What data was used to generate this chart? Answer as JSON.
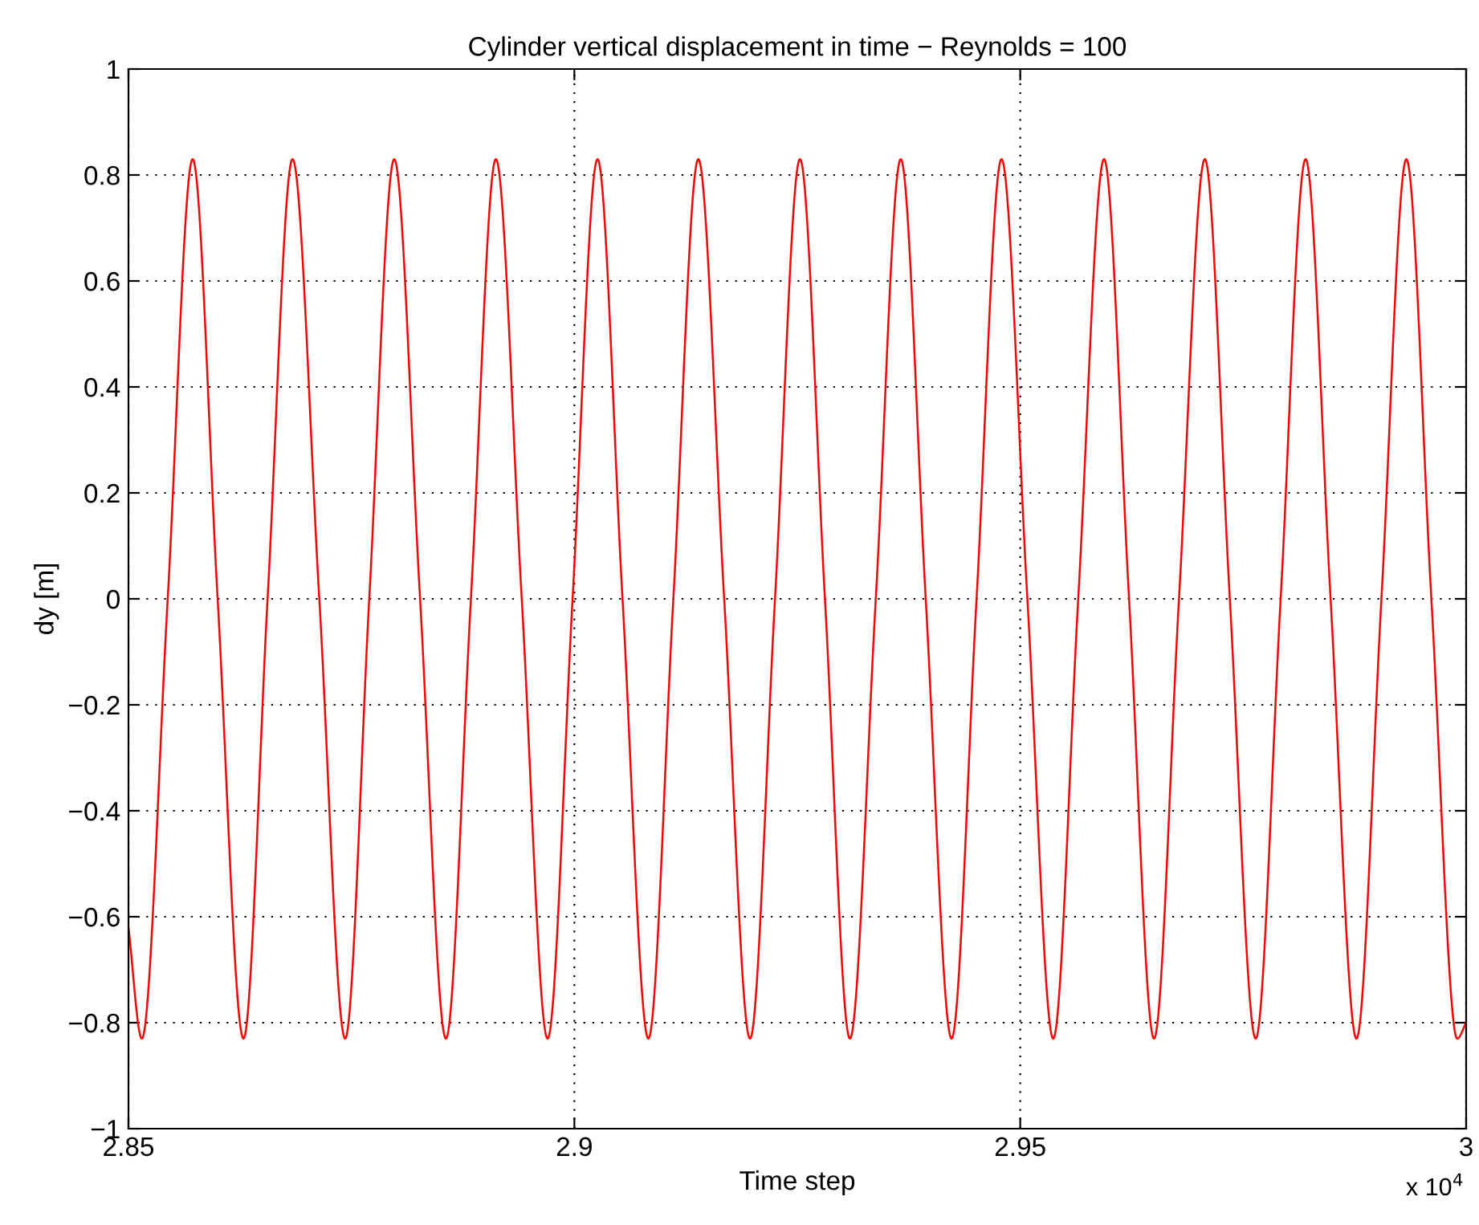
{
  "chart_data": {
    "type": "line",
    "title": "Cylinder vertical displacement in time − Reynolds = 100",
    "xlabel": "Time step",
    "ylabel": "dy [m]",
    "annotations": [
      "x 10$^{4}$"
    ],
    "xlim": [
      2.85,
      3
    ],
    "xticks": [
      2.85,
      2.9,
      2.95,
      3
    ],
    "ylim": [
      -1,
      1
    ],
    "yticks": [
      -1,
      -0.8,
      -0.6,
      -0.4,
      -0.2,
      0,
      0.2,
      0.4,
      0.6,
      0.8,
      1
    ],
    "grid": true,
    "line_style": "solid",
    "marker": "none",
    "series": [
      {
        "color": "#ff0000",
        "x": [
          2.85,
          2.8515,
          2.8544,
          2.8572,
          2.86,
          2.8629,
          2.8656,
          2.8684,
          2.8714,
          2.8743,
          2.877,
          2.8798,
          2.8827,
          2.8856,
          2.8884,
          2.8912,
          2.8941,
          2.897,
          2.8998,
          2.9026,
          2.9054,
          2.9083,
          2.9111,
          2.9139,
          2.9168,
          2.9197,
          2.9225,
          2.9253,
          2.9281,
          2.9309,
          2.9338,
          2.9366,
          2.9394,
          2.9423,
          2.9451,
          2.9479,
          2.9508,
          2.9537,
          2.9565,
          2.9594,
          2.9622,
          2.965,
          2.9678,
          2.9707,
          2.9735,
          2.9764,
          2.9792,
          2.982,
          2.9848,
          2.9877,
          2.9905,
          2.9933,
          2.9961,
          2.999,
          3
        ],
        "values": [
          -0.62,
          -0.83,
          0,
          0.83,
          0,
          -0.83,
          0,
          0.83,
          0,
          -0.83,
          0,
          0.83,
          0,
          -0.83,
          0,
          0.83,
          0,
          -0.83,
          0,
          0.83,
          0,
          -0.83,
          0,
          0.83,
          0,
          -0.83,
          0,
          0.83,
          0,
          -0.83,
          0,
          0.83,
          0,
          -0.83,
          0,
          0.83,
          0,
          -0.83,
          0,
          0.83,
          0,
          -0.83,
          0,
          0.83,
          0,
          -0.83,
          0,
          0.83,
          0,
          -0.83,
          0,
          0.83,
          0,
          -0.83,
          -0.8
        ]
      }
    ]
  }
}
